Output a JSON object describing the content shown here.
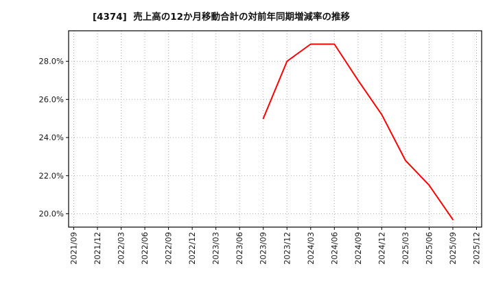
{
  "chart_data": {
    "type": "line",
    "title": "[4374]  売上高の12か月移動合計の対前年同期増減率の推移",
    "categories": [
      "2021/09",
      "2021/12",
      "2022/03",
      "2022/06",
      "2022/09",
      "2022/12",
      "2023/03",
      "2023/06",
      "2023/09",
      "2023/12",
      "2024/03",
      "2024/06",
      "2024/09",
      "2024/12",
      "2025/03",
      "2025/06",
      "2025/09",
      "2025/12"
    ],
    "series": [
      {
        "name": "売上高の12か月移動合計の対前年同期増減率",
        "color": "#ff0000",
        "values": [
          null,
          null,
          null,
          null,
          null,
          null,
          null,
          null,
          25.0,
          28.0,
          28.9,
          28.9,
          27.0,
          25.2,
          22.8,
          21.5,
          19.7,
          null
        ]
      }
    ],
    "ylim": [
      19.3,
      29.6
    ],
    "yticks": [
      20.0,
      22.0,
      24.0,
      26.0,
      28.0
    ],
    "ytick_labels": [
      "20.0%",
      "22.0%",
      "24.0%",
      "26.0%",
      "28.0%"
    ],
    "xlabel": "",
    "ylabel": "",
    "grid": true,
    "grid_style": "dotted",
    "legend": false,
    "colors": {
      "line": "#ff0000",
      "grid": "#aaaaaa",
      "axis_border": "#000000",
      "tick_label": "#1a1a1a",
      "background": "#ffffff"
    }
  }
}
